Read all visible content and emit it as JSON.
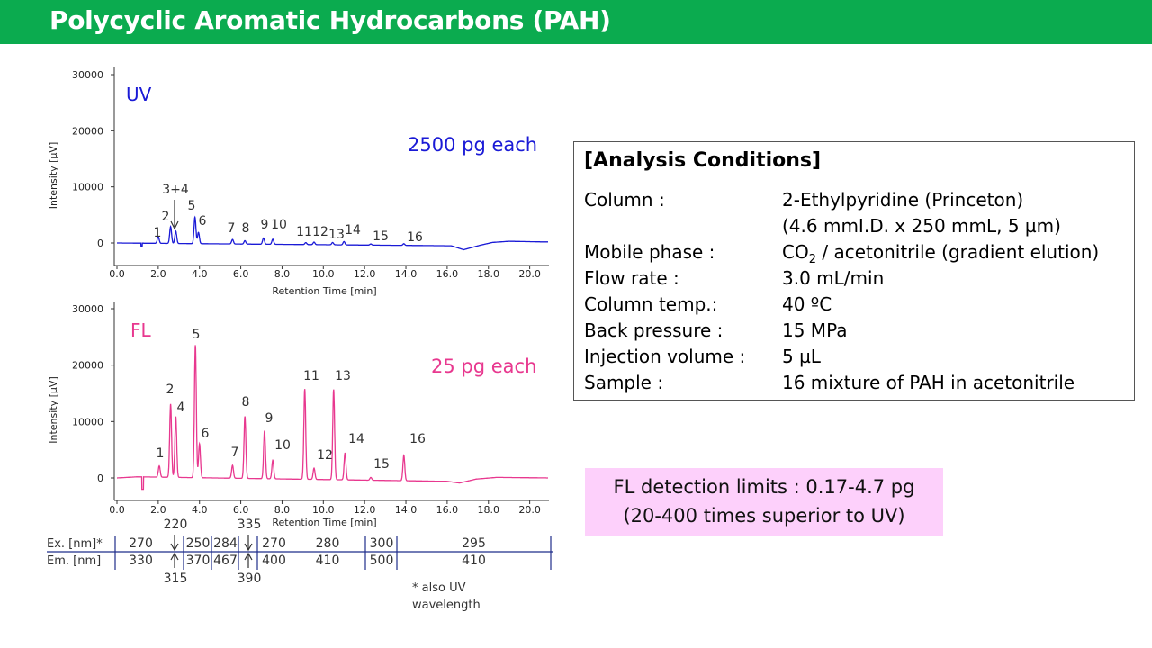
{
  "title": "Polycyclic Aromatic Hydrocarbons (PAH)",
  "chart_data": [
    {
      "type": "line",
      "series_label": "UV",
      "amount_label": "2500 pg each",
      "color": "#1a1ad6",
      "xlabel": "Retention Time [min]",
      "ylabel": "Intensity [µV]",
      "xlim": [
        0,
        21
      ],
      "ylim": [
        -3000,
        31000
      ],
      "xticks": [
        "0.0",
        "2.0",
        "4.0",
        "6.0",
        "8.0",
        "10.0",
        "12.0",
        "14.0",
        "16.0",
        "18.0",
        "20.0"
      ],
      "yticks": [
        "30000",
        "20000",
        "10000",
        "0"
      ],
      "baseline": [
        [
          0,
          0
        ],
        [
          16.2,
          -500
        ],
        [
          16.8,
          -1200
        ],
        [
          17.6,
          -400
        ],
        [
          18.2,
          100
        ],
        [
          19.0,
          300
        ],
        [
          20.5,
          200
        ],
        [
          21,
          200
        ]
      ],
      "peaks": [
        {
          "label": "1",
          "x": 2.0,
          "y": 1200
        },
        {
          "label": "2",
          "x": 2.6,
          "y": 3000
        },
        {
          "label": "3+4",
          "x": 2.85,
          "y": 2200
        },
        {
          "label": "5",
          "x": 3.78,
          "y": 4700
        },
        {
          "label": "6",
          "x": 3.95,
          "y": 2000
        },
        {
          "label": "7",
          "x": 5.6,
          "y": 800
        },
        {
          "label": "8",
          "x": 6.2,
          "y": 600
        },
        {
          "label": "9",
          "x": 7.1,
          "y": 1100
        },
        {
          "label": "10",
          "x": 7.55,
          "y": 900
        },
        {
          "label": "11",
          "x": 9.15,
          "y": 350
        },
        {
          "label": "12",
          "x": 9.55,
          "y": 450
        },
        {
          "label": "13",
          "x": 10.45,
          "y": 400
        },
        {
          "label": "14",
          "x": 11.0,
          "y": 600
        },
        {
          "label": "15",
          "x": 12.3,
          "y": 200
        },
        {
          "label": "16",
          "x": 13.9,
          "y": 300
        }
      ]
    },
    {
      "type": "line",
      "series_label": "FL",
      "amount_label": "25 pg each",
      "color": "#e8388f",
      "xlabel": "Retention Time [min]",
      "ylabel": "Intensity [µV]",
      "xlim": [
        0,
        21
      ],
      "ylim": [
        -3000,
        31000
      ],
      "xticks": [
        "0.0",
        "2.0",
        "4.0",
        "6.0",
        "8.0",
        "10.0",
        "12.0",
        "14.0",
        "16.0",
        "18.0",
        "20.0"
      ],
      "yticks": [
        "30000",
        "20000",
        "10000",
        "0"
      ],
      "baseline": [
        [
          0,
          0
        ],
        [
          1,
          200
        ],
        [
          16,
          -600
        ],
        [
          16.6,
          -900
        ],
        [
          17.4,
          -200
        ],
        [
          18.4,
          100
        ],
        [
          21,
          0
        ]
      ],
      "peaks": [
        {
          "label": "1",
          "x": 2.05,
          "y": 2000
        },
        {
          "label": "2",
          "x": 2.6,
          "y": 13000
        },
        {
          "label": "4",
          "x": 2.85,
          "y": 10800
        },
        {
          "label": "5",
          "x": 3.8,
          "y": 23500
        },
        {
          "label": "6",
          "x": 4.0,
          "y": 6000
        },
        {
          "label": "7",
          "x": 5.6,
          "y": 2300
        },
        {
          "label": "8",
          "x": 6.2,
          "y": 11000
        },
        {
          "label": "9",
          "x": 7.15,
          "y": 8500
        },
        {
          "label": "10",
          "x": 7.55,
          "y": 3300
        },
        {
          "label": "11",
          "x": 9.1,
          "y": 16000
        },
        {
          "label": "12",
          "x": 9.55,
          "y": 2000
        },
        {
          "label": "13",
          "x": 10.5,
          "y": 16000
        },
        {
          "label": "14",
          "x": 11.05,
          "y": 4800
        },
        {
          "label": "15",
          "x": 12.3,
          "y": 500
        },
        {
          "label": "16",
          "x": 13.9,
          "y": 4500
        }
      ]
    }
  ],
  "wavelength_table": {
    "ex_label": "Ex. [nm]*",
    "em_label": "Em. [nm]",
    "ex_values": [
      "270",
      "250",
      "284",
      "270",
      "280",
      "300",
      "295"
    ],
    "em_values": [
      "330",
      "370",
      "467",
      "400",
      "410",
      "500",
      "410"
    ],
    "switch_ex_low": "220",
    "switch_em_low": "315",
    "switch_ex_high": "335",
    "switch_em_high": "390",
    "footnote_line1": "* also UV",
    "footnote_line2": "wavelength"
  },
  "analysis_conditions": {
    "heading": "[Analysis Conditions]",
    "rows": [
      {
        "label": "Column :",
        "value": "2-Ethylpyridine (Princeton)"
      },
      {
        "label": "",
        "value": "(4.6 mmI.D. x 250 mmL, 5 µm)"
      },
      {
        "label": "Mobile phase :",
        "value_a": "CO",
        "value_sub": "2",
        "value_b": " / acetonitrile (gradient elution)"
      },
      {
        "label": "Flow rate :",
        "value": "3.0 mL/min"
      },
      {
        "label": "Column temp.:",
        "value": "40 ºC"
      },
      {
        "label": "Back pressure :",
        "value": "15 MPa"
      },
      {
        "label": "Injection volume :",
        "value": "5 µL"
      },
      {
        "label": "Sample :",
        "value": "16 mixture of PAH in acetonitrile"
      }
    ]
  },
  "detection_limits": {
    "line1": "FL detection limits : 0.17-4.7 pg",
    "line2": "(20-400 times superior to UV)"
  }
}
